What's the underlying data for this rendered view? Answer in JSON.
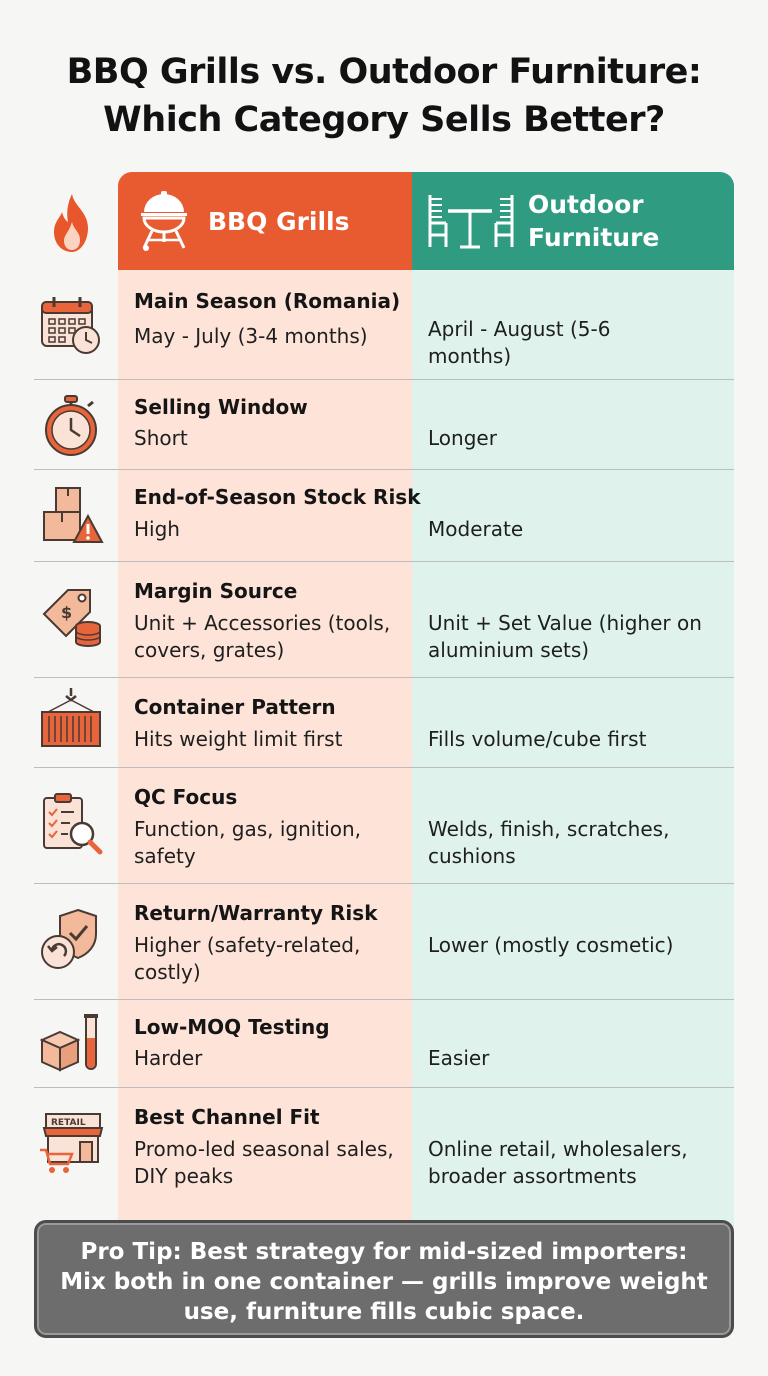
{
  "title": {
    "line1": "BBQ Grills vs. Outdoor Furniture:",
    "line2": "Which Category Sells Better?"
  },
  "columns": {
    "grills": {
      "label": "BBQ Grills",
      "icon": "kettle-grill-icon",
      "color": "#e85a30"
    },
    "furniture": {
      "label_line1": "Outdoor",
      "label_line2": "Furniture",
      "icon": "table-chairs-icon",
      "color": "#2f9c82"
    }
  },
  "rows": [
    {
      "label": "Main Season (Romania)",
      "grills": "May - July (3-4 months)",
      "furniture": "April - August (5-6 months)",
      "icon": "calendar-clock-icon"
    },
    {
      "label": "Selling Window",
      "grills": "Short",
      "furniture": "Longer",
      "icon": "stopwatch-icon"
    },
    {
      "label": "End-of-Season Stock Risk",
      "grills": "High",
      "furniture": "Moderate",
      "icon": "boxes-warning-icon"
    },
    {
      "label": "Margin Source",
      "grills": "Unit + Accessories (tools, covers, grates)",
      "furniture": "Unit + Set Value (higher on aluminium sets)",
      "icon": "price-tag-coins-icon"
    },
    {
      "label": "Container Pattern",
      "grills": "Hits weight limit first",
      "furniture": "Fills volume/cube first",
      "icon": "shipping-container-icon"
    },
    {
      "label": "QC Focus",
      "grills": "Function, gas, ignition, safety",
      "furniture": "Welds, finish, scratches, cushions",
      "icon": "checklist-magnifier-icon"
    },
    {
      "label": "Return/Warranty Risk",
      "grills": "Higher (safety-related, costly)",
      "furniture": "Lower (mostly cosmetic)",
      "icon": "shield-return-icon"
    },
    {
      "label": "Low-MOQ Testing",
      "grills": "Harder",
      "furniture": "Easier",
      "icon": "box-test-tube-icon"
    },
    {
      "label": "Best Channel Fit",
      "grills": "Promo-led seasonal sales, DIY peaks",
      "furniture": "Online retail, wholesalers, broader assortments",
      "icon": "retail-store-cart-icon",
      "icon_text": "RETAIL"
    }
  ],
  "tip": {
    "line1": "Pro Tip: Best strategy for mid-sized importers:",
    "line2": "Mix both in one container — grills improve weight",
    "line3": "use, furniture fills cubic space."
  }
}
